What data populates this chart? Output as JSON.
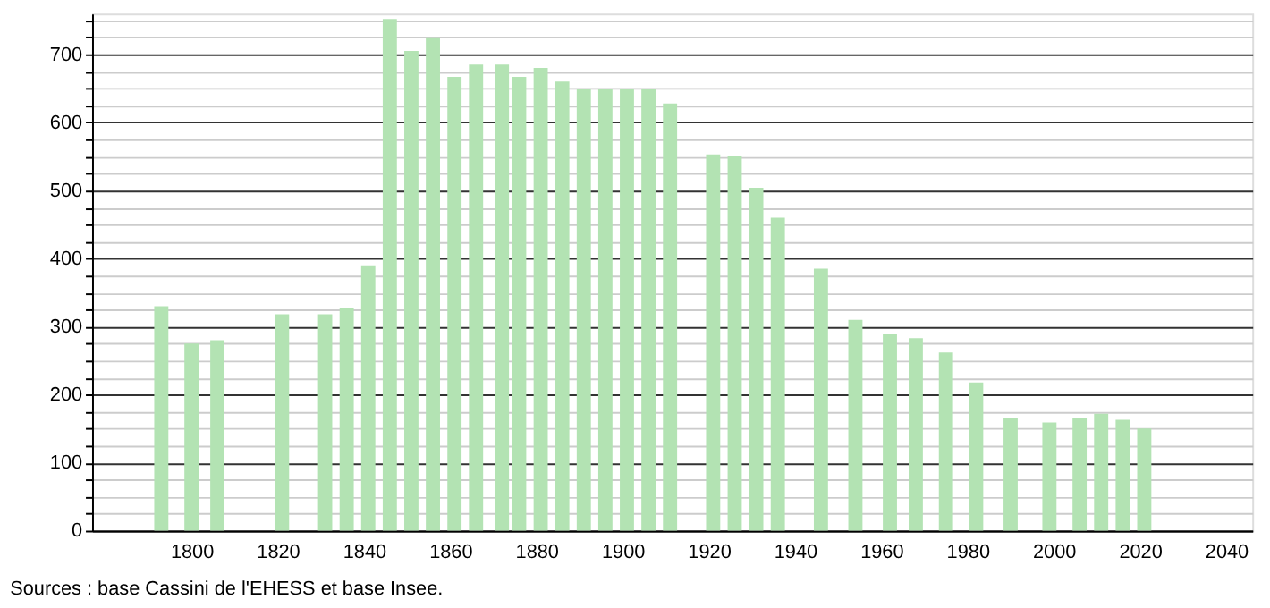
{
  "chart_data": {
    "type": "bar",
    "annotations": [
      "Sources : base Cassini de l'EHESS et base Insee."
    ],
    "x": [
      1793,
      1800,
      1806,
      1821,
      1831,
      1836,
      1841,
      1846,
      1851,
      1856,
      1861,
      1866,
      1872,
      1876,
      1881,
      1886,
      1891,
      1896,
      1901,
      1906,
      1911,
      1921,
      1926,
      1931,
      1936,
      1946,
      1954,
      1962,
      1968,
      1975,
      1982,
      1990,
      1999,
      2006,
      2011,
      2016,
      2021
    ],
    "values": [
      330,
      275,
      280,
      318,
      318,
      327,
      390,
      752,
      705,
      725,
      667,
      685,
      685,
      667,
      680,
      660,
      650,
      650,
      650,
      650,
      628,
      553,
      550,
      504,
      460,
      385,
      310,
      289,
      283,
      262,
      218,
      166,
      159,
      166,
      172,
      163,
      150
    ],
    "color": "#b3e3b3",
    "xlim": [
      1779,
      2044
    ],
    "xticks": [
      1800,
      1820,
      1840,
      1860,
      1880,
      1900,
      1920,
      1940,
      1960,
      1980,
      2000,
      2020,
      2040
    ],
    "ylim": [
      0,
      760
    ],
    "yticks": [
      0,
      {
        "value": 25,
        "label": null
      },
      {
        "value": 50,
        "label": null
      },
      {
        "value": 75,
        "label": null
      },
      100,
      {
        "value": 125,
        "label": null
      },
      {
        "value": 150,
        "label": null
      },
      {
        "value": 175,
        "label": null
      },
      200,
      {
        "value": 225,
        "label": null
      },
      {
        "value": 250,
        "label": null
      },
      {
        "value": 275,
        "label": null
      },
      300,
      {
        "value": 325,
        "label": null
      },
      {
        "value": 350,
        "label": null
      },
      {
        "value": 375,
        "label": null
      },
      400,
      {
        "value": 425,
        "label": null
      },
      {
        "value": 450,
        "label": null
      },
      {
        "value": 475,
        "label": null
      },
      500,
      {
        "value": 525,
        "label": null
      },
      {
        "value": 550,
        "label": null
      },
      {
        "value": 575,
        "label": null
      },
      600,
      {
        "value": 625,
        "label": null
      },
      {
        "value": 650,
        "label": null
      },
      {
        "value": 675,
        "label": null
      },
      700,
      {
        "value": 725,
        "label": null
      },
      {
        "value": 750,
        "label": null
      }
    ],
    "grid": "y"
  }
}
